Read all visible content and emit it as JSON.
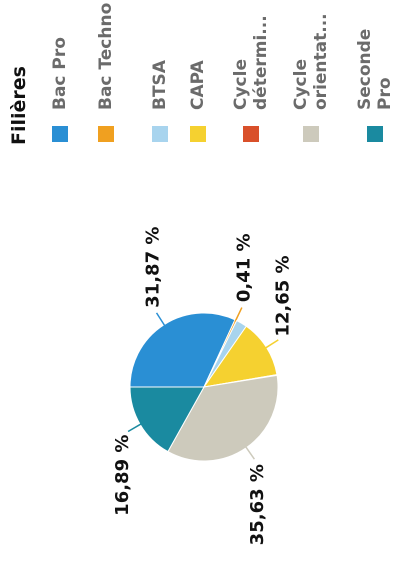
{
  "chart_data": {
    "type": "pie",
    "legend_title": "Filières",
    "categories": [
      "Bac Pro",
      "Bac Techno",
      "BTSA",
      "CAPA",
      "Cycle détermi...",
      "Cycle orientat...",
      "Seconde Pro"
    ],
    "values": [
      31.87,
      0.41,
      2.4,
      12.65,
      0.15,
      35.63,
      16.89
    ],
    "value_labels": [
      "31,87 %",
      "0,41 %",
      null,
      "12,65 %",
      null,
      "35,63 %",
      "16,89 %"
    ],
    "colors": [
      "#2a8fd4",
      "#f0a020",
      "#a8d4ee",
      "#f5d130",
      "#d9502a",
      "#cdcabc",
      "#1a8aa0"
    ]
  }
}
